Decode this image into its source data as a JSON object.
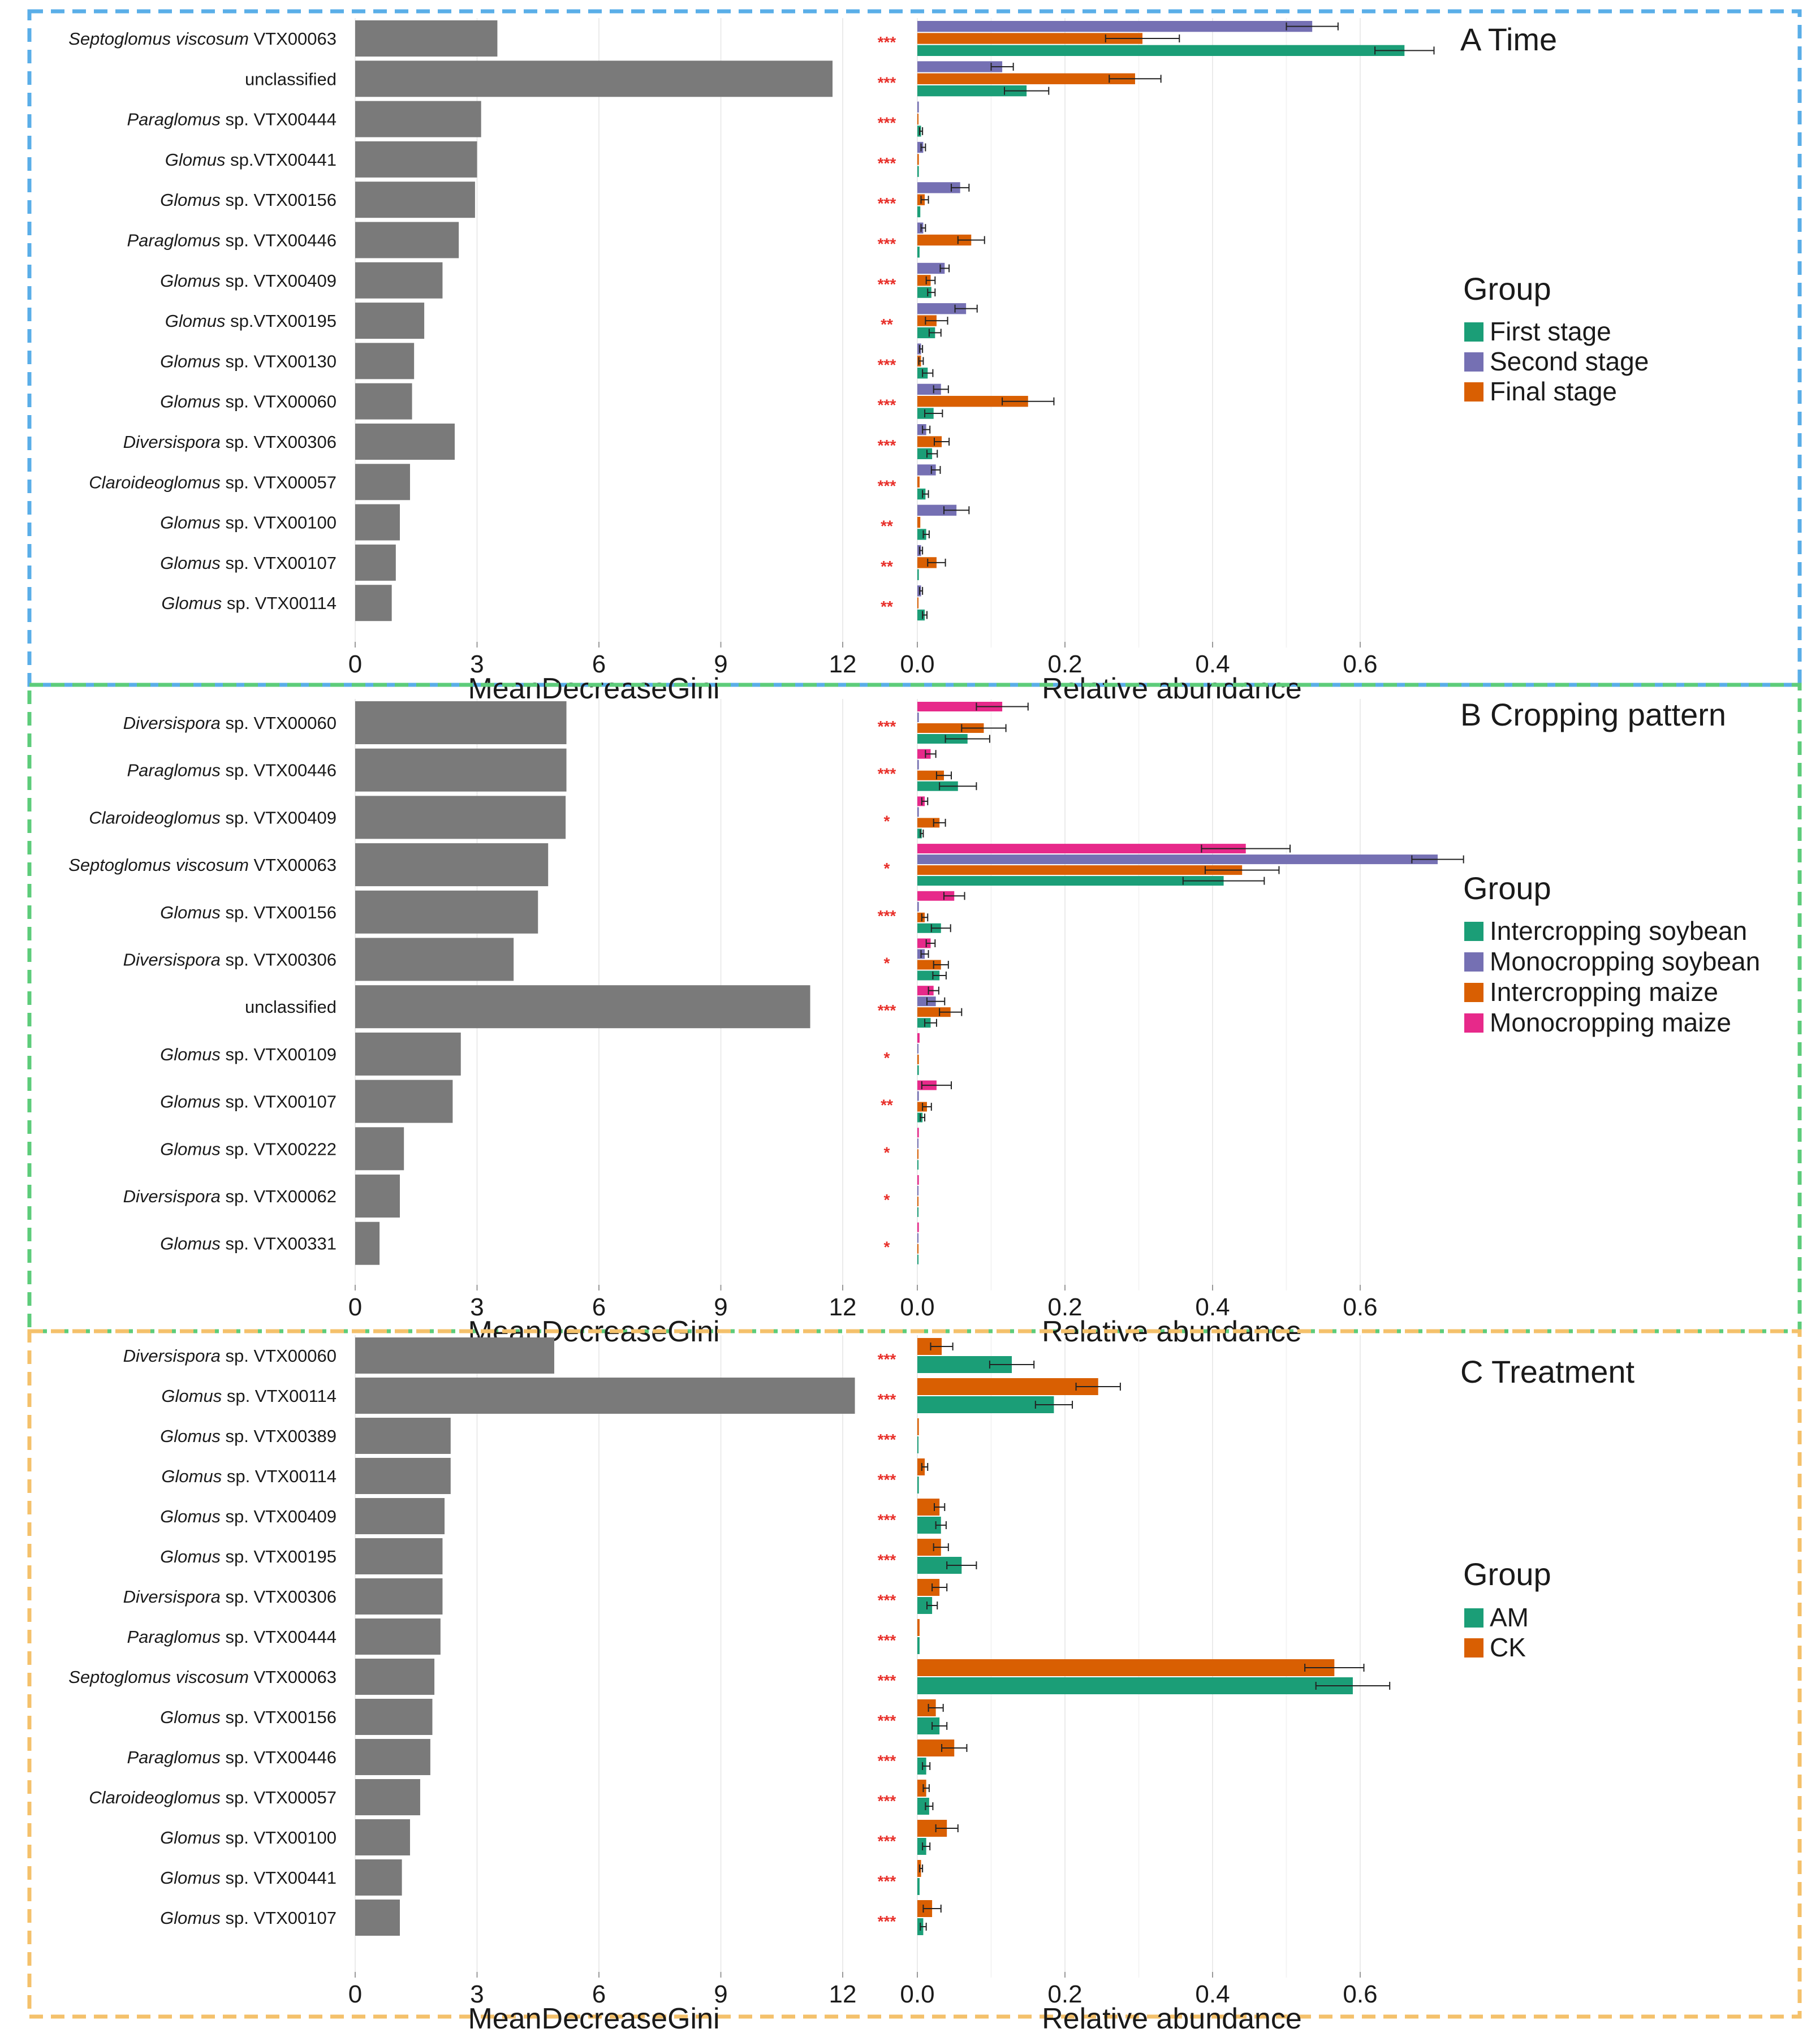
{
  "figure": {
    "gini_axis_label": "MeanDecreaseGini",
    "abundance_axis_label": "Relative abundance",
    "gini_ticks": [
      0,
      3,
      6,
      9,
      12
    ],
    "abundance_ticks": [
      0.0,
      0.2,
      0.4,
      0.6
    ],
    "abundance_tick_labels": [
      "0.0",
      "0.2",
      "0.4",
      "0.6"
    ],
    "legend_title": "Group",
    "gini_bar_color": "#7a7a7a",
    "significance_color": "#e8302a"
  },
  "chart_data": [
    {
      "type": "bar",
      "panel": "A",
      "title": "A Time",
      "border_color": "#5aaee8",
      "xlabel_left": "MeanDecreaseGini",
      "xlabel_right": "Relative abundance",
      "gini_xlim": [
        0,
        12
      ],
      "abundance_xlim": [
        0,
        0.7
      ],
      "legend": {
        "title": "Group",
        "placement": "right",
        "entries": [
          "First stage",
          "Second stage",
          "Final stage"
        ]
      },
      "series_order_top_to_bottom": [
        "Second stage",
        "Final stage",
        "First stage"
      ],
      "series_colors": {
        "First stage": "#1b9e77",
        "Second stage": "#7570b3",
        "Final stage": "#d95f02"
      },
      "rows": [
        {
          "genus": "Septoglomus viscosum",
          "rest": " VTX00063",
          "gini": 3.5,
          "sig": "***",
          "values": {
            "Second stage": 0.535,
            "Final stage": 0.305,
            "First stage": 0.66
          },
          "errors": {
            "Second stage": 0.035,
            "Final stage": 0.05,
            "First stage": 0.04
          }
        },
        {
          "genus": "",
          "rest": "unclassified",
          "gini": 11.75,
          "sig": "***",
          "values": {
            "Second stage": 0.115,
            "Final stage": 0.295,
            "First stage": 0.148
          },
          "errors": {
            "Second stage": 0.015,
            "Final stage": 0.035,
            "First stage": 0.03
          }
        },
        {
          "genus": "Paraglomus",
          "rest": " sp. VTX00444",
          "gini": 3.1,
          "sig": "***",
          "values": {
            "Second stage": 0.002,
            "Final stage": 0.001,
            "First stage": 0.005
          },
          "errors": {
            "Second stage": 0.001,
            "Final stage": 0.001,
            "First stage": 0.002
          }
        },
        {
          "genus": "Glomus",
          "rest": " sp.VTX00441",
          "gini": 3.0,
          "sig": "***",
          "values": {
            "Second stage": 0.008,
            "Final stage": 0.002,
            "First stage": 0.002
          },
          "errors": {
            "Second stage": 0.003,
            "Final stage": 0.001,
            "First stage": 0.001
          }
        },
        {
          "genus": "Glomus",
          "rest": " sp. VTX00156",
          "gini": 2.95,
          "sig": "***",
          "values": {
            "Second stage": 0.058,
            "Final stage": 0.01,
            "First stage": 0.004
          },
          "errors": {
            "Second stage": 0.012,
            "Final stage": 0.005,
            "First stage": 0.002
          }
        },
        {
          "genus": "Paraglomus",
          "rest": " sp. VTX00446",
          "gini": 2.55,
          "sig": "***",
          "values": {
            "Second stage": 0.008,
            "Final stage": 0.073,
            "First stage": 0.003
          },
          "errors": {
            "Second stage": 0.003,
            "Final stage": 0.018,
            "First stage": 0.001
          }
        },
        {
          "genus": "Glomus",
          "rest": " sp. VTX00409",
          "gini": 2.15,
          "sig": "***",
          "values": {
            "Second stage": 0.037,
            "Final stage": 0.018,
            "First stage": 0.019
          },
          "errors": {
            "Second stage": 0.006,
            "Final stage": 0.006,
            "First stage": 0.005
          }
        },
        {
          "genus": "Glomus",
          "rest": " sp.VTX00195",
          "gini": 1.7,
          "sig": "**",
          "values": {
            "Second stage": 0.066,
            "Final stage": 0.026,
            "First stage": 0.024
          },
          "errors": {
            "Second stage": 0.015,
            "Final stage": 0.015,
            "First stage": 0.008
          }
        },
        {
          "genus": "Glomus",
          "rest": " sp. VTX00130",
          "gini": 1.45,
          "sig": "***",
          "values": {
            "Second stage": 0.005,
            "Final stage": 0.005,
            "First stage": 0.014
          },
          "errors": {
            "Second stage": 0.002,
            "Final stage": 0.003,
            "First stage": 0.007
          }
        },
        {
          "genus": "Glomus",
          "rest": " sp. VTX00060",
          "gini": 1.4,
          "sig": "***",
          "values": {
            "Second stage": 0.032,
            "Final stage": 0.15,
            "First stage": 0.022
          },
          "errors": {
            "Second stage": 0.01,
            "Final stage": 0.035,
            "First stage": 0.012
          }
        },
        {
          "genus": "Diversispora",
          "rest": " sp. VTX00306",
          "gini": 2.45,
          "sig": "***",
          "values": {
            "Second stage": 0.012,
            "Final stage": 0.033,
            "First stage": 0.02
          },
          "errors": {
            "Second stage": 0.005,
            "Final stage": 0.01,
            "First stage": 0.007
          }
        },
        {
          "genus": "Claroideoglomus",
          "rest": " sp. VTX00057",
          "gini": 1.35,
          "sig": "***",
          "values": {
            "Second stage": 0.025,
            "Final stage": 0.003,
            "First stage": 0.011
          },
          "errors": {
            "Second stage": 0.006,
            "Final stage": 0.002,
            "First stage": 0.004
          }
        },
        {
          "genus": "Glomus",
          "rest": " sp. VTX00100",
          "gini": 1.1,
          "sig": "**",
          "values": {
            "Second stage": 0.053,
            "Final stage": 0.004,
            "First stage": 0.012
          },
          "errors": {
            "Second stage": 0.017,
            "Final stage": 0.002,
            "First stage": 0.004
          }
        },
        {
          "genus": "Glomus",
          "rest": " sp. VTX00107",
          "gini": 1.0,
          "sig": "**",
          "values": {
            "Second stage": 0.005,
            "Final stage": 0.026,
            "First stage": 0.002
          },
          "errors": {
            "Second stage": 0.002,
            "Final stage": 0.012,
            "First stage": 0.001
          }
        },
        {
          "genus": "Glomus",
          "rest": " sp. VTX00114",
          "gini": 0.9,
          "sig": "**",
          "values": {
            "Second stage": 0.005,
            "Final stage": 0.001,
            "First stage": 0.01
          },
          "errors": {
            "Second stage": 0.002,
            "Final stage": 0.001,
            "First stage": 0.003
          }
        }
      ]
    },
    {
      "type": "bar",
      "panel": "B",
      "title": "B Cropping pattern",
      "border_color": "#5dcc7a",
      "xlabel_left": "MeanDecreaseGini",
      "xlabel_right": "Relative abundance",
      "gini_xlim": [
        0,
        12
      ],
      "abundance_xlim": [
        0,
        0.7
      ],
      "legend": {
        "title": "Group",
        "placement": "right",
        "entries": [
          "Intercropping soybean",
          "Monocropping soybean",
          "Intercropping maize",
          "Monocropping maize"
        ]
      },
      "series_order_top_to_bottom": [
        "Monocropping maize",
        "Monocropping soybean",
        "Intercropping maize",
        "Intercropping soybean"
      ],
      "series_colors": {
        "Intercropping soybean": "#1b9e77",
        "Monocropping soybean": "#7570b3",
        "Intercropping maize": "#d95f02",
        "Monocropping maize": "#e7298a"
      },
      "rows": [
        {
          "genus": "Diversispora",
          "rest": " sp. VTX00060",
          "gini": 5.2,
          "sig": "***",
          "values": {
            "Monocropping maize": 0.115,
            "Monocropping soybean": 0.002,
            "Intercropping maize": 0.09,
            "Intercropping soybean": 0.068
          },
          "errors": {
            "Monocropping maize": 0.035,
            "Monocropping soybean": 0.001,
            "Intercropping maize": 0.03,
            "Intercropping soybean": 0.03
          }
        },
        {
          "genus": "Paraglomus",
          "rest": " sp. VTX00446",
          "gini": 5.2,
          "sig": "***",
          "values": {
            "Monocropping maize": 0.018,
            "Monocropping soybean": 0.002,
            "Intercropping maize": 0.036,
            "Intercropping soybean": 0.055
          },
          "errors": {
            "Monocropping maize": 0.007,
            "Monocropping soybean": 0.001,
            "Intercropping maize": 0.01,
            "Intercropping soybean": 0.025
          }
        },
        {
          "genus": "Claroideoglomus",
          "rest": " sp. VTX00409",
          "gini": 5.18,
          "sig": "*",
          "values": {
            "Monocropping maize": 0.01,
            "Monocropping soybean": 0.002,
            "Intercropping maize": 0.03,
            "Intercropping soybean": 0.006
          },
          "errors": {
            "Monocropping maize": 0.004,
            "Monocropping soybean": 0.001,
            "Intercropping maize": 0.008,
            "Intercropping soybean": 0.002
          }
        },
        {
          "genus": "Septoglomus viscosum",
          "rest": " VTX00063",
          "gini": 4.75,
          "sig": "*",
          "values": {
            "Monocropping maize": 0.445,
            "Monocropping soybean": 0.705,
            "Intercropping maize": 0.44,
            "Intercropping soybean": 0.415
          },
          "errors": {
            "Monocropping maize": 0.06,
            "Monocropping soybean": 0.035,
            "Intercropping maize": 0.05,
            "Intercropping soybean": 0.055
          }
        },
        {
          "genus": "Glomus",
          "rest": " sp. VTX00156",
          "gini": 4.5,
          "sig": "***",
          "values": {
            "Monocropping maize": 0.05,
            "Monocropping soybean": 0.002,
            "Intercropping maize": 0.01,
            "Intercropping soybean": 0.032
          },
          "errors": {
            "Monocropping maize": 0.014,
            "Monocropping soybean": 0.001,
            "Intercropping maize": 0.004,
            "Intercropping soybean": 0.013
          }
        },
        {
          "genus": "Diversispora",
          "rest": " sp. VTX00306",
          "gini": 3.9,
          "sig": "*",
          "values": {
            "Monocropping maize": 0.018,
            "Monocropping soybean": 0.01,
            "Intercropping maize": 0.032,
            "Intercropping soybean": 0.03
          },
          "errors": {
            "Monocropping maize": 0.006,
            "Monocropping soybean": 0.005,
            "Intercropping maize": 0.01,
            "Intercropping soybean": 0.009
          }
        },
        {
          "genus": "",
          "rest": "unclassified",
          "gini": 11.2,
          "sig": "***",
          "values": {
            "Monocropping maize": 0.022,
            "Monocropping soybean": 0.025,
            "Intercropping maize": 0.045,
            "Intercropping soybean": 0.018
          },
          "errors": {
            "Monocropping maize": 0.007,
            "Monocropping soybean": 0.012,
            "Intercropping maize": 0.015,
            "Intercropping soybean": 0.008
          }
        },
        {
          "genus": "Glomus",
          "rest": " sp. VTX00109",
          "gini": 2.6,
          "sig": "*",
          "values": {
            "Monocropping maize": 0.003,
            "Monocropping soybean": 0.001,
            "Intercropping maize": 0.002,
            "Intercropping soybean": 0.002
          },
          "errors": {
            "Monocropping maize": 0.002,
            "Monocropping soybean": 0.001,
            "Intercropping maize": 0.001,
            "Intercropping soybean": 0.001
          }
        },
        {
          "genus": "Glomus",
          "rest": " sp. VTX00107",
          "gini": 2.4,
          "sig": "**",
          "values": {
            "Monocropping maize": 0.026,
            "Monocropping soybean": 0.002,
            "Intercropping maize": 0.013,
            "Intercropping soybean": 0.007
          },
          "errors": {
            "Monocropping maize": 0.02,
            "Monocropping soybean": 0.001,
            "Intercropping maize": 0.006,
            "Intercropping soybean": 0.003
          }
        },
        {
          "genus": "Glomus",
          "rest": " sp. VTX00222",
          "gini": 1.2,
          "sig": "*",
          "values": {
            "Monocropping maize": 0.002,
            "Monocropping soybean": 0.001,
            "Intercropping maize": 0.001,
            "Intercropping soybean": 0.001
          },
          "errors": {
            "Monocropping maize": 0.001,
            "Monocropping soybean": 0.001,
            "Intercropping maize": 0.001,
            "Intercropping soybean": 0.001
          }
        },
        {
          "genus": "Diversispora",
          "rest": " sp. VTX00062",
          "gini": 1.1,
          "sig": "*",
          "values": {
            "Monocropping maize": 0.002,
            "Monocropping soybean": 0.001,
            "Intercropping maize": 0.001,
            "Intercropping soybean": 0.001
          },
          "errors": {
            "Monocropping maize": 0.001,
            "Monocropping soybean": 0.001,
            "Intercropping maize": 0.001,
            "Intercropping soybean": 0.001
          }
        },
        {
          "genus": "Glomus",
          "rest": " sp. VTX00331",
          "gini": 0.6,
          "sig": "*",
          "values": {
            "Monocropping maize": 0.002,
            "Monocropping soybean": 0.001,
            "Intercropping maize": 0.001,
            "Intercropping soybean": 0.001
          },
          "errors": {
            "Monocropping maize": 0.001,
            "Monocropping soybean": 0.001,
            "Intercropping maize": 0.001,
            "Intercropping soybean": 0.001
          }
        }
      ]
    },
    {
      "type": "bar",
      "panel": "C",
      "title": "C Treatment",
      "border_color": "#f4c16b",
      "xlabel_left": "MeanDecreaseGini",
      "xlabel_right": "Relative abundance",
      "gini_xlim": [
        0,
        12
      ],
      "abundance_xlim": [
        0,
        0.7
      ],
      "legend": {
        "title": "Group",
        "placement": "right",
        "entries": [
          "AM",
          "CK"
        ]
      },
      "series_order_top_to_bottom": [
        "CK",
        "AM"
      ],
      "series_colors": {
        "AM": "#1b9e77",
        "CK": "#d95f02"
      },
      "rows": [
        {
          "genus": "Diversispora",
          "rest": " sp. VTX00060",
          "gini": 4.9,
          "sig": "***",
          "values": {
            "CK": 0.033,
            "AM": 0.128
          },
          "errors": {
            "CK": 0.015,
            "AM": 0.03
          }
        },
        {
          "genus": "Glomus",
          "rest": " sp. VTX00114",
          "gini": 12.3,
          "sig": "***",
          "values": {
            "CK": 0.245,
            "AM": 0.185
          },
          "errors": {
            "CK": 0.03,
            "AM": 0.025
          }
        },
        {
          "genus": "Glomus",
          "rest": " sp. VTX00389",
          "gini": 2.35,
          "sig": "***",
          "values": {
            "CK": 0.002,
            "AM": 0.001
          },
          "errors": {
            "CK": 0.001,
            "AM": 0.001
          }
        },
        {
          "genus": "Glomus",
          "rest": " sp. VTX00114",
          "gini": 2.35,
          "sig": "***",
          "values": {
            "CK": 0.01,
            "AM": 0.002
          },
          "errors": {
            "CK": 0.004,
            "AM": 0.001
          }
        },
        {
          "genus": "Glomus",
          "rest": " sp. VTX00409",
          "gini": 2.2,
          "sig": "***",
          "values": {
            "CK": 0.03,
            "AM": 0.032
          },
          "errors": {
            "CK": 0.007,
            "AM": 0.007
          }
        },
        {
          "genus": "Glomus",
          "rest": " sp. VTX00195",
          "gini": 2.15,
          "sig": "***",
          "values": {
            "CK": 0.032,
            "AM": 0.06
          },
          "errors": {
            "CK": 0.01,
            "AM": 0.02
          }
        },
        {
          "genus": "Diversispora",
          "rest": " sp. VTX00306",
          "gini": 2.15,
          "sig": "***",
          "values": {
            "CK": 0.03,
            "AM": 0.02
          },
          "errors": {
            "CK": 0.01,
            "AM": 0.007
          }
        },
        {
          "genus": "Paraglomus",
          "rest": " sp. VTX00444",
          "gini": 2.1,
          "sig": "***",
          "values": {
            "CK": 0.003,
            "AM": 0.003
          },
          "errors": {
            "CK": 0.001,
            "AM": 0.001
          }
        },
        {
          "genus": "Septoglomus viscosum",
          "rest": " VTX00063",
          "gini": 1.95,
          "sig": "***",
          "values": {
            "CK": 0.565,
            "AM": 0.59
          },
          "errors": {
            "CK": 0.04,
            "AM": 0.05
          }
        },
        {
          "genus": "Glomus",
          "rest": " sp. VTX00156",
          "gini": 1.9,
          "sig": "***",
          "values": {
            "CK": 0.025,
            "AM": 0.03
          },
          "errors": {
            "CK": 0.01,
            "AM": 0.01
          }
        },
        {
          "genus": "Paraglomus",
          "rest": " sp. VTX00446",
          "gini": 1.85,
          "sig": "***",
          "values": {
            "CK": 0.05,
            "AM": 0.012
          },
          "errors": {
            "CK": 0.017,
            "AM": 0.005
          }
        },
        {
          "genus": "Claroideoglomus",
          "rest": " sp. VTX00057",
          "gini": 1.6,
          "sig": "***",
          "values": {
            "CK": 0.012,
            "AM": 0.016
          },
          "errors": {
            "CK": 0.004,
            "AM": 0.005
          }
        },
        {
          "genus": "Glomus",
          "rest": " sp. VTX00100",
          "gini": 1.35,
          "sig": "***",
          "values": {
            "CK": 0.04,
            "AM": 0.012
          },
          "errors": {
            "CK": 0.015,
            "AM": 0.005
          }
        },
        {
          "genus": "Glomus",
          "rest": " sp. VTX00441",
          "gini": 1.15,
          "sig": "***",
          "values": {
            "CK": 0.005,
            "AM": 0.003
          },
          "errors": {
            "CK": 0.002,
            "AM": 0.001
          }
        },
        {
          "genus": "Glomus",
          "rest": " sp. VTX00107",
          "gini": 1.1,
          "sig": "***",
          "values": {
            "CK": 0.02,
            "AM": 0.008
          },
          "errors": {
            "CK": 0.012,
            "AM": 0.004
          }
        }
      ]
    }
  ]
}
